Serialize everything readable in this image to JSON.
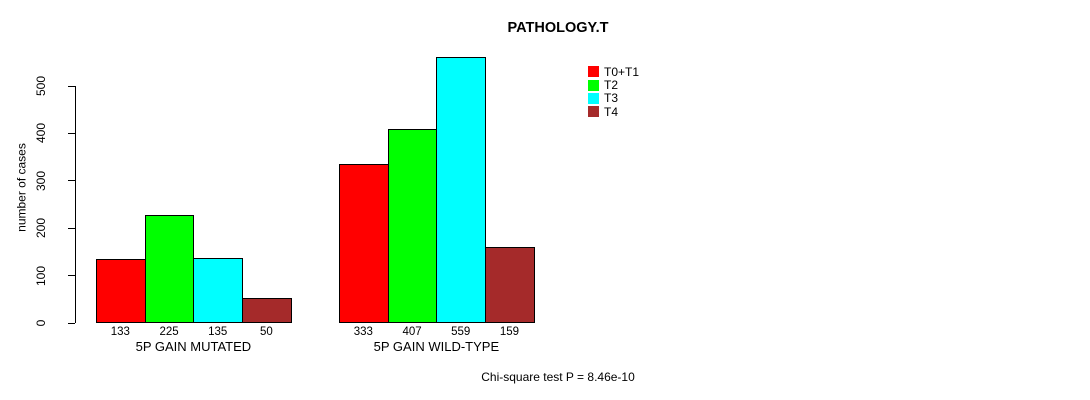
{
  "chart_data": {
    "type": "bar",
    "title": "PATHOLOGY.T",
    "xlabel": "",
    "ylabel": "number of cases",
    "ylim": [
      0,
      500
    ],
    "yticks": [
      0,
      100,
      200,
      300,
      400,
      500
    ],
    "grid": false,
    "legend_position": "top-right",
    "categories": [
      "5P GAIN MUTATED",
      "5P GAIN WILD-TYPE"
    ],
    "series": [
      {
        "name": "T0+T1",
        "color": "#ff0000",
        "values": [
          133,
          333
        ]
      },
      {
        "name": "T2",
        "color": "#00ff00",
        "values": [
          225,
          407
        ]
      },
      {
        "name": "T3",
        "color": "#00ffff",
        "values": [
          135,
          559
        ]
      },
      {
        "name": "T4",
        "color": "#a52a2a",
        "values": [
          50,
          159
        ]
      }
    ],
    "bar_value_labels_shown": true,
    "annotation": "Chi-square test P = 8.46e-10"
  },
  "colors": {
    "axis": "#000000",
    "bar_border": "#000000",
    "background": "#ffffff",
    "text": "#000000"
  }
}
